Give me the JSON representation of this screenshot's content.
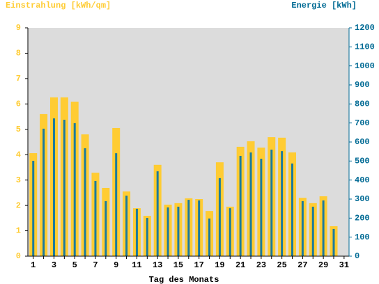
{
  "chart_data": {
    "type": "bar",
    "y_label": "Einstrahlung [kWh/qm]",
    "y2_label": "Energie [kWh]",
    "x_label": "Tag des Monats",
    "categories": [
      "1",
      null,
      "3",
      null,
      "5",
      null,
      "7",
      null,
      "9",
      null,
      "11",
      null,
      "13",
      null,
      "15",
      null,
      "17",
      null,
      "19",
      null,
      "21",
      null,
      "23",
      null,
      "25",
      null,
      "27",
      null,
      "29",
      null,
      "31"
    ],
    "series": [
      {
        "name": "Einstrahlung",
        "color": "#ffcc33",
        "values": [
          4.06,
          5.6,
          6.26,
          6.26,
          6.09,
          4.8,
          3.29,
          2.69,
          5.05,
          2.55,
          1.89,
          1.59,
          3.6,
          2.03,
          2.09,
          2.28,
          2.25,
          1.78,
          3.7,
          1.95,
          4.31,
          4.53,
          4.28,
          4.69,
          4.67,
          4.09,
          2.3,
          2.09,
          2.36,
          1.18,
          null
        ]
      },
      {
        "name": "Energie",
        "color": "#1a7a9e",
        "axis": "y2",
        "values": [
          501,
          670,
          724,
          717,
          699,
          567,
          395,
          289,
          541,
          318,
          249,
          201,
          446,
          256,
          260,
          296,
          293,
          198,
          410,
          252,
          527,
          545,
          512,
          560,
          552,
          487,
          289,
          260,
          293,
          143,
          null
        ]
      }
    ],
    "ylim": [
      0,
      9
    ],
    "yticks": [
      0,
      1,
      2,
      3,
      4,
      5,
      6,
      7,
      8,
      9
    ],
    "y2lim": [
      0,
      1200
    ],
    "y2ticks": [
      0,
      100,
      200,
      300,
      400,
      500,
      600,
      700,
      800,
      900,
      1000,
      1100,
      1200
    ],
    "y_color": "#ffcc33",
    "y2_color": "#006a94",
    "plot_background": "#dcdcdc"
  }
}
